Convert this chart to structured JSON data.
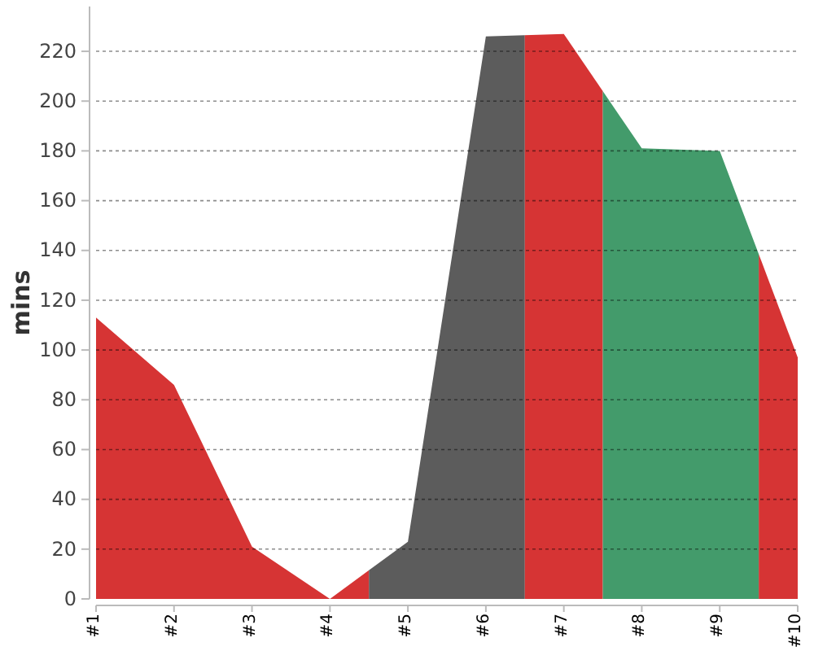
{
  "chart_data": {
    "type": "area",
    "ylabel": "mins",
    "xlim": [
      1,
      10
    ],
    "xticks": [
      {
        "value": 1,
        "label": "#1"
      },
      {
        "value": 2,
        "label": "#2"
      },
      {
        "value": 3,
        "label": "#3"
      },
      {
        "value": 4,
        "label": "#4"
      },
      {
        "value": 5,
        "label": "#5"
      },
      {
        "value": 6,
        "label": "#6"
      },
      {
        "value": 7,
        "label": "#7"
      },
      {
        "value": 8,
        "label": "#8"
      },
      {
        "value": 9,
        "label": "#9"
      },
      {
        "value": 10,
        "label": "#10"
      }
    ],
    "series": [
      {
        "color": "#d63434",
        "x": [
          1,
          2,
          3,
          4,
          4.5
        ],
        "values": [
          113,
          86,
          21,
          0,
          11.5
        ]
      },
      {
        "color": "#5c5c5c",
        "x": [
          4.5,
          5,
          6,
          6.5
        ],
        "values": [
          11.5,
          23,
          226,
          226.5
        ]
      },
      {
        "color": "#d63434",
        "x": [
          6.5,
          7,
          7.5
        ],
        "values": [
          226.5,
          227,
          204
        ]
      },
      {
        "color": "#439b6b",
        "x": [
          7.5,
          8,
          9,
          9.5
        ],
        "values": [
          204,
          181,
          180,
          138.5
        ]
      },
      {
        "color": "#d63434",
        "x": [
          9.5,
          10
        ],
        "values": [
          138.5,
          97
        ]
      }
    ],
    "ylim": [
      0,
      238
    ],
    "yticks": [
      0,
      20,
      40,
      60,
      80,
      100,
      120,
      140,
      160,
      180,
      200,
      220
    ],
    "grid": "y"
  }
}
